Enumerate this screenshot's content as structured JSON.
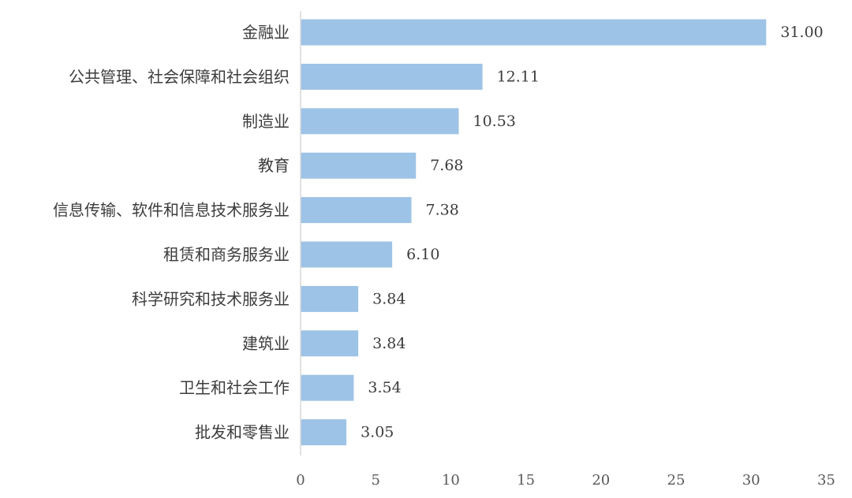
{
  "chart_data": {
    "type": "bar",
    "orientation": "horizontal",
    "title": "",
    "xlabel": "",
    "ylabel": "",
    "categories": [
      "金融业",
      "公共管理、社会保障和社会组织",
      "制造业",
      "教育",
      "信息传输、软件和信息技术服务业",
      "租赁和商务服务业",
      "科学研究和技术服务业",
      "建筑业",
      "卫生和社会工作",
      "批发和零售业"
    ],
    "values": [
      31.0,
      12.11,
      10.53,
      7.68,
      7.38,
      6.1,
      3.84,
      3.84,
      3.54,
      3.05
    ],
    "data_labels": [
      "31.00",
      "12.11",
      "10.53",
      "7.68",
      "7.38",
      "6.10",
      "3.84",
      "3.84",
      "3.54",
      "3.05"
    ],
    "xlim": [
      0,
      35
    ],
    "x_ticks": [
      0,
      5,
      10,
      15,
      20,
      25,
      30,
      35
    ],
    "grid": false,
    "legend": "none",
    "colors": {
      "bar": "#9dc3e6",
      "axis": "#d9d9d9",
      "text": "#3c3c3c"
    }
  }
}
